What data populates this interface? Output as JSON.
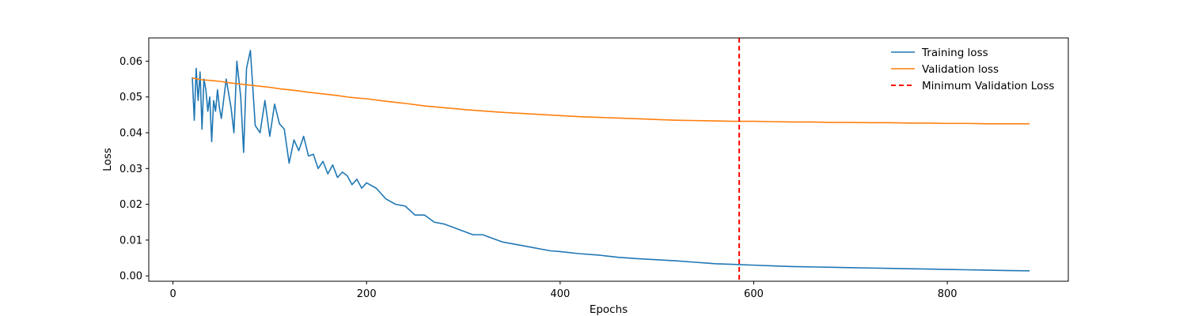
{
  "chart_data": {
    "type": "line",
    "xlabel": "Epochs",
    "ylabel": "Loss",
    "xlim": [
      -25,
      925
    ],
    "ylim": [
      -0.0015,
      0.0665
    ],
    "xticks": [
      0,
      200,
      400,
      600,
      800
    ],
    "yticks": [
      0.0,
      0.01,
      0.02,
      0.03,
      0.04,
      0.05,
      0.06
    ],
    "xtick_labels": [
      "0",
      "200",
      "400",
      "600",
      "800"
    ],
    "ytick_labels": [
      "0.00",
      "0.01",
      "0.02",
      "0.03",
      "0.04",
      "0.05",
      "0.06"
    ],
    "grid": false,
    "legend_position": "top-right",
    "series": [
      {
        "name": "Training loss",
        "color": "#1f77b4",
        "x": [
          20,
          22,
          24,
          26,
          28,
          30,
          32,
          34,
          36,
          38,
          40,
          42,
          44,
          46,
          48,
          50,
          55,
          60,
          63,
          66,
          70,
          73,
          76,
          80,
          85,
          90,
          95,
          100,
          105,
          110,
          115,
          120,
          125,
          130,
          135,
          140,
          145,
          150,
          155,
          160,
          165,
          170,
          175,
          180,
          185,
          190,
          195,
          200,
          210,
          220,
          230,
          240,
          250,
          260,
          270,
          280,
          290,
          300,
          310,
          320,
          330,
          340,
          350,
          360,
          370,
          380,
          390,
          400,
          420,
          440,
          460,
          480,
          500,
          520,
          540,
          560,
          580,
          600,
          620,
          640,
          660,
          680,
          700,
          720,
          740,
          760,
          780,
          800,
          820,
          840,
          860,
          885
        ],
        "y": [
          0.0555,
          0.0435,
          0.058,
          0.049,
          0.057,
          0.041,
          0.055,
          0.052,
          0.046,
          0.05,
          0.0375,
          0.049,
          0.046,
          0.052,
          0.047,
          0.044,
          0.055,
          0.047,
          0.04,
          0.06,
          0.05,
          0.0345,
          0.058,
          0.063,
          0.042,
          0.04,
          0.049,
          0.039,
          0.048,
          0.0425,
          0.041,
          0.0315,
          0.038,
          0.035,
          0.039,
          0.0335,
          0.034,
          0.03,
          0.032,
          0.0285,
          0.031,
          0.0275,
          0.029,
          0.028,
          0.0255,
          0.027,
          0.0245,
          0.026,
          0.0245,
          0.0215,
          0.02,
          0.0195,
          0.017,
          0.017,
          0.015,
          0.0145,
          0.0135,
          0.0125,
          0.0115,
          0.0115,
          0.0105,
          0.0095,
          0.009,
          0.0085,
          0.008,
          0.0075,
          0.007,
          0.0068,
          0.0062,
          0.0058,
          0.0052,
          0.0048,
          0.0045,
          0.0042,
          0.0038,
          0.0034,
          0.0032,
          0.003,
          0.0028,
          0.0026,
          0.0025,
          0.0024,
          0.0023,
          0.0022,
          0.0021,
          0.002,
          0.0019,
          0.0018,
          0.0017,
          0.0016,
          0.0015,
          0.0014
        ]
      },
      {
        "name": "Validation loss",
        "color": "#ff7f0e",
        "x": [
          20,
          30,
          40,
          50,
          60,
          70,
          80,
          90,
          100,
          110,
          120,
          130,
          140,
          150,
          160,
          170,
          180,
          190,
          200,
          220,
          240,
          260,
          280,
          300,
          320,
          340,
          360,
          380,
          400,
          420,
          440,
          460,
          480,
          500,
          520,
          540,
          560,
          580,
          600,
          620,
          640,
          660,
          680,
          700,
          720,
          740,
          760,
          780,
          800,
          820,
          840,
          860,
          885
        ],
        "y": [
          0.0553,
          0.0548,
          0.0546,
          0.0543,
          0.0539,
          0.0536,
          0.0533,
          0.053,
          0.0527,
          0.0523,
          0.052,
          0.0517,
          0.0513,
          0.051,
          0.0507,
          0.0504,
          0.05,
          0.0497,
          0.0495,
          0.0488,
          0.0482,
          0.0475,
          0.047,
          0.0465,
          0.0461,
          0.0457,
          0.0454,
          0.0451,
          0.0448,
          0.0445,
          0.0443,
          0.0441,
          0.0439,
          0.0437,
          0.0435,
          0.0434,
          0.0433,
          0.0432,
          0.0432,
          0.0431,
          0.043,
          0.043,
          0.0429,
          0.0429,
          0.0428,
          0.0428,
          0.0427,
          0.0427,
          0.0426,
          0.0426,
          0.0425,
          0.0425,
          0.0425
        ]
      },
      {
        "name": "Minimum Validation Loss",
        "color": "#ff0000",
        "style": "dashed",
        "vline_x": 585
      }
    ]
  }
}
